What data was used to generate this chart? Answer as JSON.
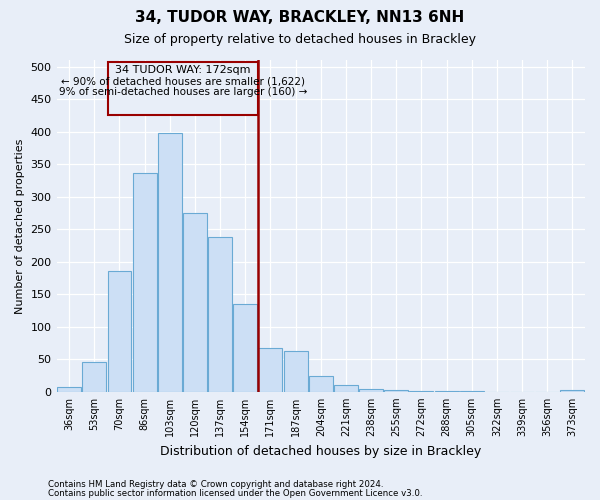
{
  "title": "34, TUDOR WAY, BRACKLEY, NN13 6NH",
  "subtitle": "Size of property relative to detached houses in Brackley",
  "xlabel": "Distribution of detached houses by size in Brackley",
  "ylabel": "Number of detached properties",
  "bar_labels": [
    "36sqm",
    "53sqm",
    "70sqm",
    "86sqm",
    "103sqm",
    "120sqm",
    "137sqm",
    "154sqm",
    "171sqm",
    "187sqm",
    "204sqm",
    "221sqm",
    "238sqm",
    "255sqm",
    "272sqm",
    "288sqm",
    "305sqm",
    "322sqm",
    "339sqm",
    "356sqm",
    "373sqm"
  ],
  "bar_values": [
    8,
    46,
    185,
    337,
    398,
    275,
    238,
    135,
    68,
    62,
    25,
    11,
    5,
    3,
    2,
    1,
    1,
    0,
    0,
    0,
    3
  ],
  "bar_color": "#ccdff5",
  "bar_edge_color": "#6aaad4",
  "vline_color": "#990000",
  "annotation_line1": "34 TUDOR WAY: 172sqm",
  "annotation_line2": "← 90% of detached houses are smaller (1,622)",
  "annotation_line3": "9% of semi-detached houses are larger (160) →",
  "annotation_box_color": "#990000",
  "ylim": [
    0,
    510
  ],
  "yticks": [
    0,
    50,
    100,
    150,
    200,
    250,
    300,
    350,
    400,
    450,
    500
  ],
  "footer1": "Contains HM Land Registry data © Crown copyright and database right 2024.",
  "footer2": "Contains public sector information licensed under the Open Government Licence v3.0.",
  "bg_color": "#e8eef8",
  "grid_color": "#ffffff"
}
